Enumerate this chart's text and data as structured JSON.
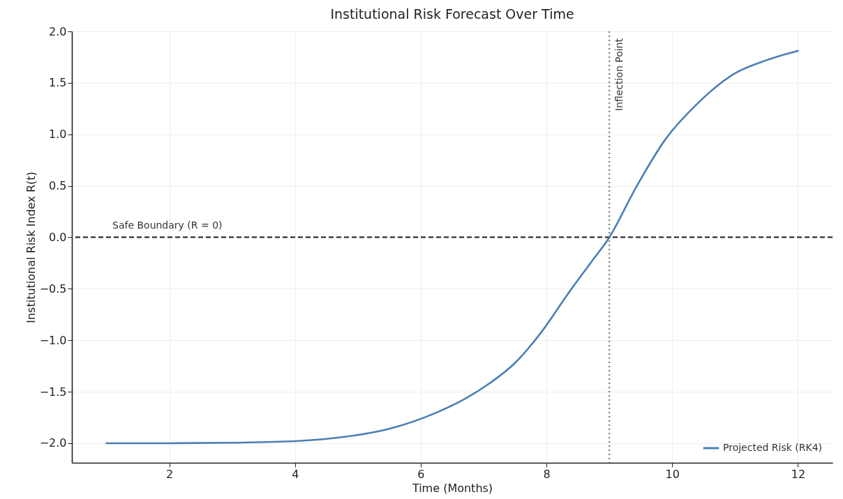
{
  "chart_data": {
    "type": "line",
    "title": "Institutional Risk Forecast Over Time",
    "xlabel": "Time (Months)",
    "ylabel": "Institutional Risk Index R(t)",
    "series": [
      {
        "name": "Projected Risk (RK4)",
        "color": "#4a7fb5",
        "x": [
          1,
          2,
          3,
          4,
          4.77,
          5.5,
          6.26,
          6.7,
          7.09,
          7.5,
          7.92,
          8.34,
          8.7,
          9,
          9.42,
          9.89,
          10.37,
          10.99,
          11.5,
          12
        ],
        "values": [
          -2.0,
          -2.0,
          -1.995,
          -1.98,
          -1.94,
          -1.86,
          -1.7,
          -1.57,
          -1.42,
          -1.22,
          -0.92,
          -0.55,
          -0.25,
          0,
          0.48,
          0.95,
          1.28,
          1.59,
          1.72,
          1.81
        ]
      }
    ],
    "xlim": [
      0.45,
      12.55
    ],
    "xticks": [
      2,
      4,
      6,
      8,
      10,
      12
    ],
    "ylim": [
      -2.19,
      2.0
    ],
    "yticks": [
      {
        "value": -2,
        "label": "−2.0"
      },
      -1.5,
      {
        "value": -1,
        "label": "−1.0"
      },
      -0.5,
      {
        "value": 0,
        "label": "0.0"
      },
      0.5,
      {
        "value": 1,
        "label": "1.0"
      },
      1.5,
      {
        "value": 2,
        "label": "2.0"
      }
    ],
    "ref_lines": [
      {
        "axis": "y",
        "value": 0,
        "label": "Safe Boundary (R = 0)",
        "color": "#333333",
        "line_style": "dashed"
      },
      {
        "axis": "x",
        "value": 9,
        "label": "Inflection Point",
        "color": "#777777",
        "line_style": "dotted"
      }
    ],
    "grid": true,
    "legend": "bottom right",
    "line_style": "solid",
    "marker": "none"
  }
}
